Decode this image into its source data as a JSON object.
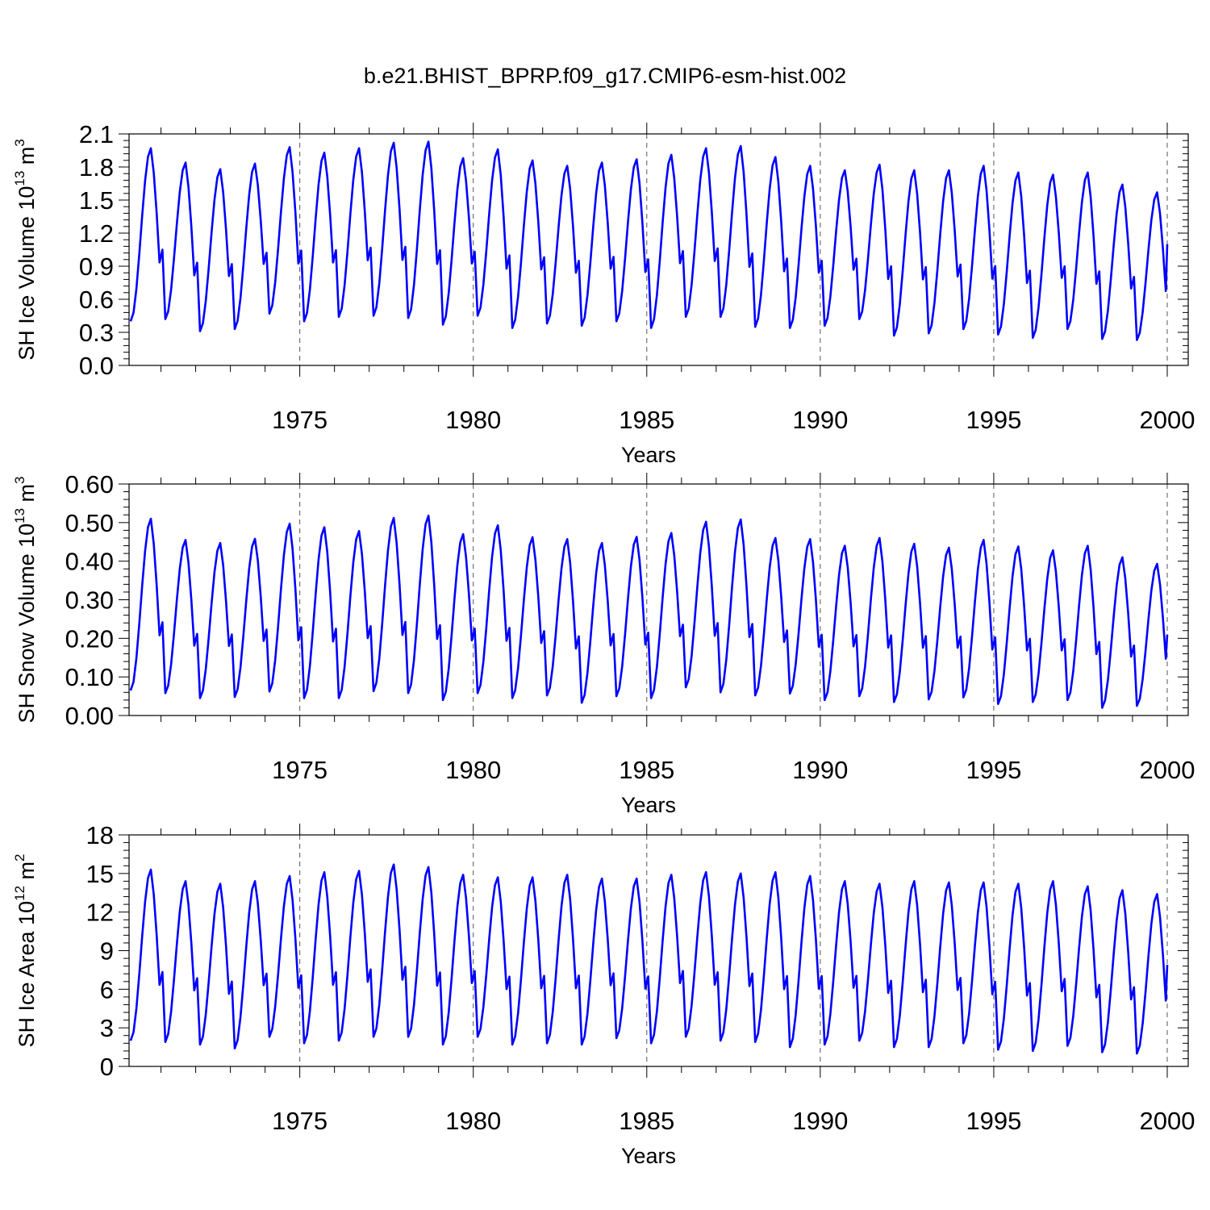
{
  "title": "b.e21.BHIST_BPRP.f09_g17.CMIP6-esm-hist.002",
  "chart_data": [
    {
      "type": "line",
      "ylabel": {
        "prefix": "SH Ice Volume 10",
        "exp": "13",
        "mid": " m",
        "unit_exp": "3"
      },
      "xlabel": "Years",
      "xlim": [
        1970.08,
        2000.0
      ],
      "ylim": [
        0.0,
        2.1
      ],
      "yticks": [
        "0.0",
        "0.3",
        "0.6",
        "0.9",
        "1.2",
        "1.5",
        "1.8",
        "2.1"
      ],
      "xticks": [
        "1975",
        "1980",
        "1985",
        "1990",
        "1995",
        "2000"
      ],
      "series": {
        "name": "SH Ice Volume",
        "color": "#0000ff",
        "start_year": 1970,
        "annual_min": [
          0.4,
          0.42,
          0.31,
          0.33,
          0.47,
          0.4,
          0.44,
          0.45,
          0.43,
          0.37,
          0.45,
          0.34,
          0.38,
          0.36,
          0.4,
          0.34,
          0.44,
          0.44,
          0.35,
          0.34,
          0.36,
          0.42,
          0.27,
          0.29,
          0.33,
          0.28,
          0.25,
          0.33,
          0.24,
          0.23
        ],
        "annual_max": [
          1.97,
          1.84,
          1.78,
          1.83,
          1.98,
          1.93,
          1.97,
          2.02,
          2.03,
          1.88,
          1.96,
          1.86,
          1.81,
          1.84,
          1.87,
          1.91,
          1.97,
          1.99,
          1.89,
          1.81,
          1.77,
          1.82,
          1.77,
          1.77,
          1.81,
          1.75,
          1.73,
          1.75,
          1.64,
          1.57
        ],
        "end_value": 1.1
      }
    },
    {
      "type": "line",
      "ylabel": {
        "prefix": "SH Snow Volume 10",
        "exp": "13",
        "mid": " m",
        "unit_exp": "3"
      },
      "xlabel": "Years",
      "xlim": [
        1970.08,
        2000.0
      ],
      "ylim": [
        0.0,
        0.6
      ],
      "yticks": [
        "0.00",
        "0.10",
        "0.20",
        "0.30",
        "0.40",
        "0.50",
        "0.60"
      ],
      "xticks": [
        "1975",
        "1980",
        "1985",
        "1990",
        "1995",
        "2000"
      ],
      "series": {
        "name": "SH Snow Volume",
        "color": "#0000ff",
        "start_year": 1970,
        "annual_min": [
          0.065,
          0.058,
          0.045,
          0.048,
          0.062,
          0.045,
          0.045,
          0.063,
          0.058,
          0.04,
          0.058,
          0.045,
          0.052,
          0.033,
          0.05,
          0.045,
          0.073,
          0.06,
          0.052,
          0.057,
          0.04,
          0.05,
          0.035,
          0.042,
          0.047,
          0.03,
          0.035,
          0.04,
          0.02,
          0.025
        ],
        "annual_max": [
          0.51,
          0.455,
          0.447,
          0.458,
          0.497,
          0.488,
          0.478,
          0.512,
          0.518,
          0.47,
          0.493,
          0.462,
          0.457,
          0.447,
          0.463,
          0.473,
          0.502,
          0.508,
          0.46,
          0.457,
          0.44,
          0.46,
          0.445,
          0.435,
          0.455,
          0.438,
          0.428,
          0.44,
          0.41,
          0.393
        ],
        "end_value": 0.21
      }
    },
    {
      "type": "line",
      "ylabel": {
        "prefix": "SH Ice Area 10",
        "exp": "12",
        "mid": " m",
        "unit_exp": "2"
      },
      "xlabel": "Years",
      "xlim": [
        1970.08,
        2000.0
      ],
      "ylim": [
        0,
        18
      ],
      "yticks": [
        "0",
        "3",
        "6",
        "9",
        "12",
        "15",
        "18"
      ],
      "xticks": [
        "1975",
        "1980",
        "1985",
        "1990",
        "1995",
        "2000"
      ],
      "series": {
        "name": "SH Ice Area",
        "color": "#0000ff",
        "start_year": 1970,
        "annual_min": [
          2.0,
          1.9,
          1.7,
          1.4,
          2.3,
          1.8,
          2.0,
          2.3,
          2.3,
          1.7,
          2.3,
          1.7,
          1.8,
          1.7,
          2.2,
          1.8,
          2.3,
          2.0,
          1.9,
          1.5,
          1.7,
          2.0,
          1.5,
          1.5,
          1.8,
          1.3,
          1.2,
          1.6,
          1.1,
          1.0
        ],
        "annual_max": [
          15.3,
          14.4,
          14.2,
          14.4,
          14.8,
          15.1,
          15.2,
          15.7,
          15.5,
          14.9,
          14.7,
          14.7,
          14.9,
          14.6,
          14.6,
          14.9,
          15.1,
          15.0,
          15.1,
          14.8,
          14.4,
          14.2,
          14.4,
          14.3,
          14.3,
          14.2,
          14.4,
          14.0,
          13.7,
          13.4
        ],
        "end_value": 7.9
      }
    }
  ]
}
